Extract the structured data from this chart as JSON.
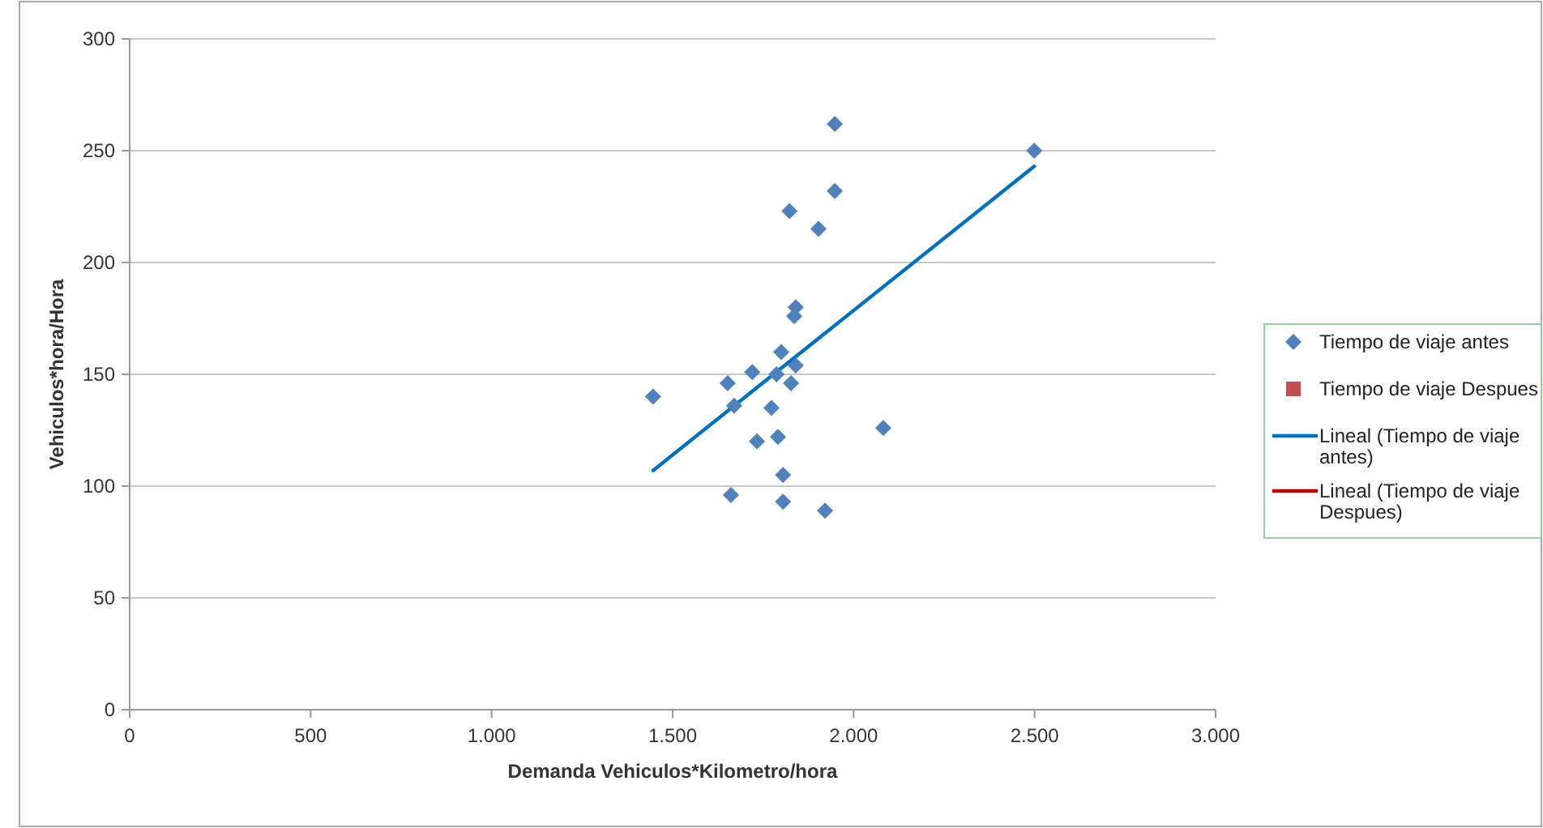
{
  "chart_data": {
    "type": "scatter",
    "xlabel": "Demanda Vehiculos*Kilometro/hora",
    "ylabel": "Vehiculos*hora/Hora",
    "xlim": [
      0,
      3000
    ],
    "ylim": [
      0,
      300
    ],
    "xticks": [
      0,
      500,
      {
        "value": 1000,
        "label": "1.000"
      },
      {
        "value": 1500,
        "label": "1.500"
      },
      {
        "value": 2000,
        "label": "2.000"
      },
      {
        "value": 2500,
        "label": "2.500"
      },
      {
        "value": 3000,
        "label": "3.000"
      }
    ],
    "yticks": [
      0,
      50,
      100,
      150,
      200,
      250,
      300
    ],
    "grid": "y",
    "legend": "right",
    "series": [
      {
        "name": "Tiempo de viaje antes",
        "marker": "diamond",
        "color": "#4f81bd",
        "x": [
          1446,
          1652,
          1670,
          1661,
          1720,
          1733,
          1773,
          1787,
          1791,
          1800,
          1805,
          1805,
          1827,
          1823,
          1836,
          1840,
          1840,
          1903,
          1921,
          1948,
          1948,
          2082,
          2499
        ],
        "values": [
          140,
          146,
          136,
          96,
          151,
          120,
          135,
          150,
          122,
          160,
          105,
          93,
          146,
          223,
          176,
          180,
          154,
          215,
          89,
          232,
          262,
          126,
          250
        ]
      },
      {
        "name": "Tiempo de viaje  Despues",
        "marker": "square",
        "color": "#c0504d"
      },
      {
        "name": "Lineal (Tiempo de viaje antes)",
        "type": "line",
        "color": "#0070c0",
        "x": [
          1446,
          2499
        ],
        "values": [
          107,
          243
        ]
      },
      {
        "name": "Lineal (Tiempo de viaje Despues)",
        "type": "line",
        "color": "#c00000"
      }
    ]
  }
}
